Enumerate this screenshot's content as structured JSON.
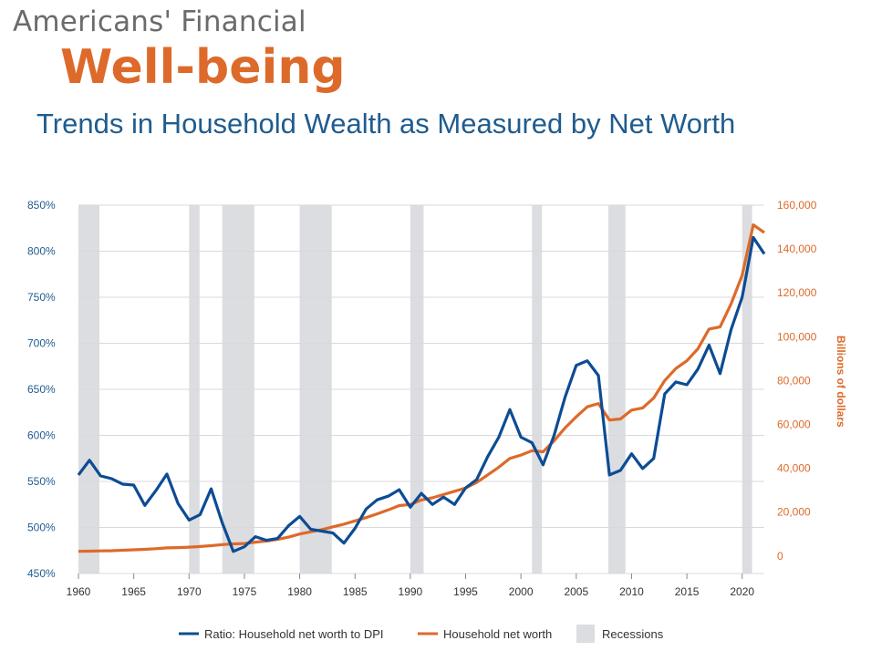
{
  "header": {
    "super": "Americans' Financial",
    "title": "Well-being",
    "subtitle": "Trends in Household Wealth as Measured by Net Worth"
  },
  "colors": {
    "ratio_line": "#0d4c94",
    "networth_line": "#dd6a2a",
    "recession": "#dcdde0",
    "grid": "#d9d9d9"
  },
  "chart_data": {
    "type": "line",
    "x_range": [
      1960,
      2022
    ],
    "x_ticks": [
      "1960",
      "1965",
      "1970",
      "1975",
      "1980",
      "1985",
      "1990",
      "1995",
      "2000",
      "2005",
      "2010",
      "2015",
      "2020"
    ],
    "left_axis": {
      "ticks": [
        "450%",
        "500%",
        "550%",
        "600%",
        "650%",
        "700%",
        "750%",
        "800%",
        "850%"
      ],
      "ylim": [
        450,
        850
      ]
    },
    "right_axis": {
      "title": "Billions of dollars",
      "ticks": [
        "0",
        "20,000",
        "40,000",
        "60,000",
        "80,000",
        "100,000",
        "120,000",
        "140,000",
        "160,000"
      ],
      "ylim": [
        -8000,
        160000
      ]
    },
    "recessions": [
      [
        1960.0,
        1961.9
      ],
      [
        1970.0,
        1970.95
      ],
      [
        1973.0,
        1975.9
      ],
      [
        1980.0,
        1982.9
      ],
      [
        1990.0,
        1991.2
      ],
      [
        2001.0,
        2001.9
      ],
      [
        2007.9,
        2009.45
      ],
      [
        2020.0,
        2020.9
      ]
    ],
    "series": [
      {
        "name": "Ratio: Household net worth to DPI",
        "axis": "left",
        "x": [
          1960,
          1961,
          1962,
          1963,
          1964,
          1965,
          1966,
          1967,
          1968,
          1969,
          1970,
          1971,
          1972,
          1973,
          1974,
          1975,
          1976,
          1977,
          1978,
          1979,
          1980,
          1981,
          1982,
          1983,
          1984,
          1985,
          1986,
          1987,
          1988,
          1989,
          1990,
          1991,
          1992,
          1993,
          1994,
          1995,
          1996,
          1997,
          1998,
          1999,
          2000,
          2001,
          2002,
          2003,
          2004,
          2005,
          2006,
          2007,
          2008,
          2009,
          2010,
          2011,
          2012,
          2013,
          2014,
          2015,
          2016,
          2017,
          2018,
          2019,
          2020,
          2021,
          2022
        ],
        "values": [
          557,
          573,
          556,
          553,
          547,
          546,
          524,
          540,
          558,
          526,
          508,
          514,
          542,
          505,
          474,
          479,
          490,
          486,
          488,
          502,
          512,
          498,
          496,
          494,
          483,
          499,
          520,
          530,
          534,
          541,
          522,
          537,
          525,
          533,
          525,
          543,
          552,
          577,
          598,
          628,
          598,
          592,
          568,
          600,
          642,
          676,
          681,
          665,
          557,
          562,
          580,
          564,
          575,
          645,
          658,
          655,
          672,
          698,
          667,
          715,
          750,
          815,
          797
        ]
      },
      {
        "name": "Household net worth",
        "axis": "right",
        "x": [
          1960,
          1961,
          1962,
          1963,
          1964,
          1965,
          1966,
          1967,
          1968,
          1969,
          1970,
          1971,
          1972,
          1973,
          1974,
          1975,
          1976,
          1977,
          1978,
          1979,
          1980,
          1981,
          1982,
          1983,
          1984,
          1985,
          1986,
          1987,
          1988,
          1989,
          1990,
          1991,
          1992,
          1993,
          1994,
          1995,
          1996,
          1997,
          1998,
          1999,
          2000,
          2001,
          2002,
          2003,
          2004,
          2005,
          2006,
          2007,
          2008,
          2009,
          2010,
          2011,
          2012,
          2013,
          2014,
          2015,
          2016,
          2017,
          2018,
          2019,
          2020,
          2021,
          2022
        ],
        "values": [
          2100,
          2200,
          2300,
          2400,
          2600,
          2800,
          3000,
          3300,
          3700,
          3800,
          4000,
          4300,
          4700,
          5200,
          5500,
          5700,
          6300,
          6800,
          7600,
          8600,
          10000,
          11000,
          12000,
          13300,
          14500,
          16000,
          17500,
          19200,
          21000,
          23000,
          23500,
          25500,
          26500,
          28000,
          29500,
          31000,
          33500,
          37000,
          40500,
          44500,
          46000,
          48000,
          47500,
          52500,
          58500,
          63500,
          68000,
          69500,
          62000,
          62500,
          66500,
          67500,
          72000,
          80000,
          85500,
          89000,
          94500,
          103500,
          104500,
          115000,
          128000,
          151000,
          147500
        ]
      }
    ],
    "legend": [
      "Ratio: Household net worth to DPI",
      "Household net worth",
      "Recessions"
    ],
    "legend_placement": "bottom"
  }
}
